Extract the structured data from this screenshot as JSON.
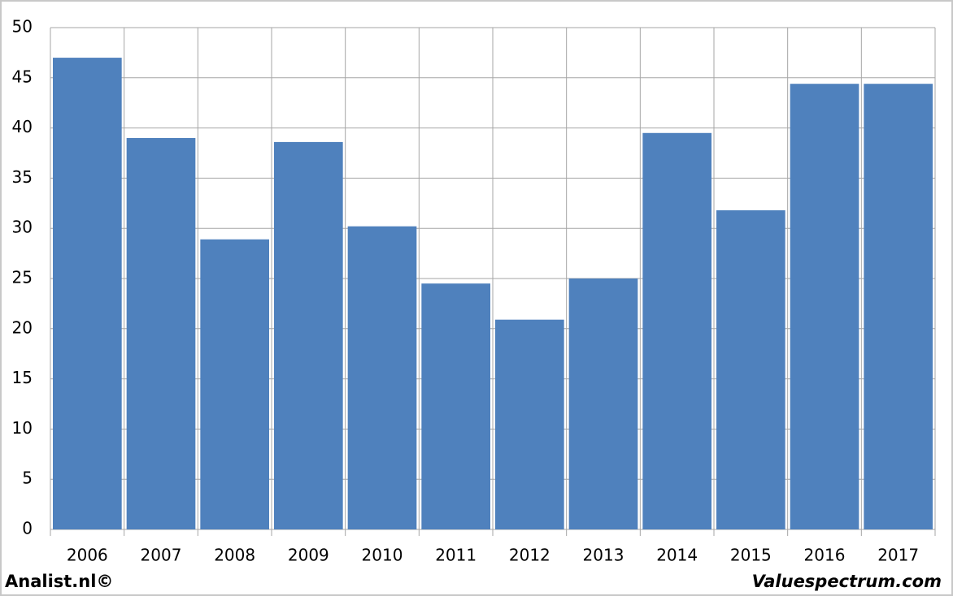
{
  "chart_data": {
    "type": "bar",
    "categories": [
      "2006",
      "2007",
      "2008",
      "2009",
      "2010",
      "2011",
      "2012",
      "2013",
      "2014",
      "2015",
      "2016",
      "2017"
    ],
    "values": [
      47,
      39,
      28.9,
      38.6,
      30.2,
      24.5,
      20.9,
      25,
      39.5,
      31.8,
      44.4,
      44.4
    ],
    "color": "#4f81bd",
    "ylim": [
      0,
      50
    ],
    "yticks": [
      0,
      5,
      10,
      15,
      20,
      25,
      30,
      35,
      40,
      45,
      50
    ],
    "grid": true
  },
  "footer": {
    "left": "Analist.nl©",
    "right": "Valuespectrum.com"
  }
}
